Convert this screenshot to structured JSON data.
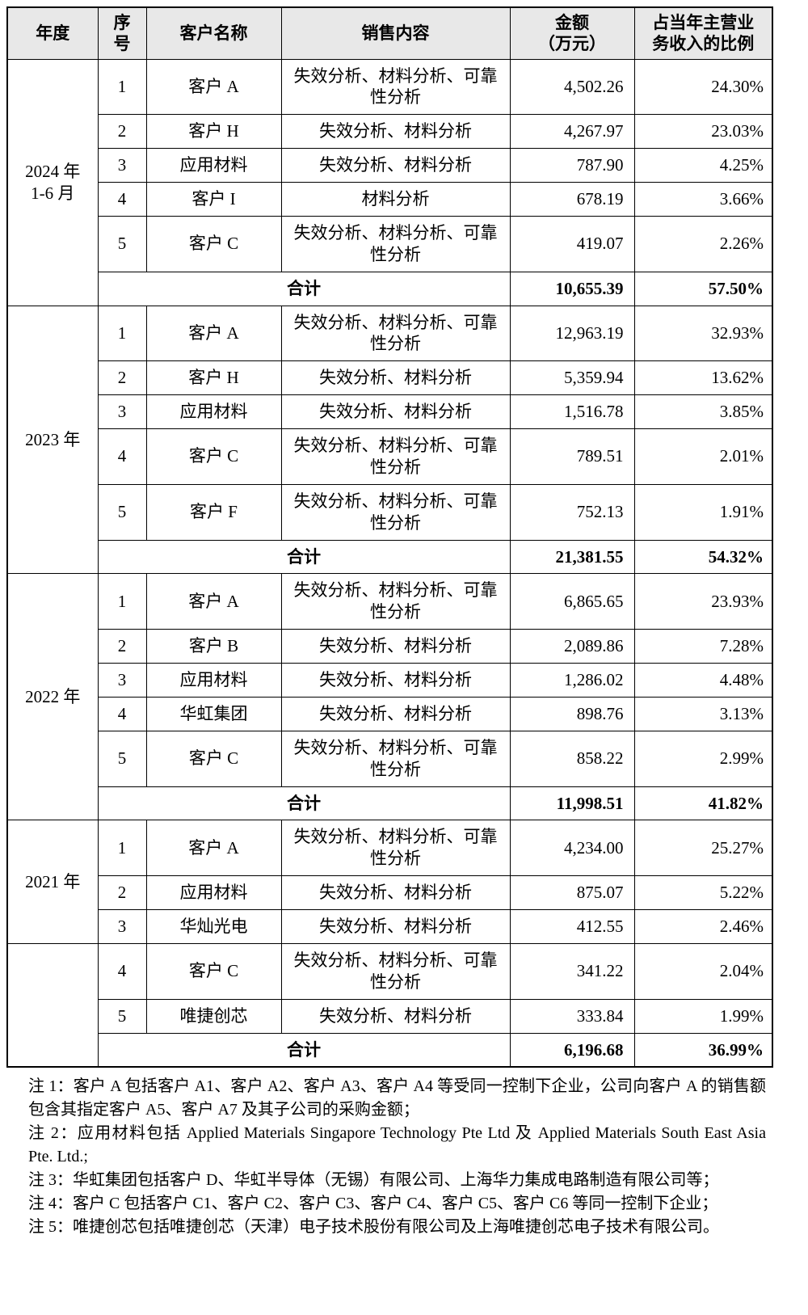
{
  "table": {
    "headers": {
      "year": "年度",
      "no": "序\n号",
      "customer": "客户名称",
      "content": "销售内容",
      "amount": "金额\n（万元）",
      "ratio": "占当年主营业\n务收入的比例"
    },
    "groups": [
      {
        "year": "2024 年\n1-6 月",
        "rows": [
          {
            "no": "1",
            "customer": "客户 A",
            "content": "失效分析、材料分析、可靠性分析",
            "amount": "4,502.26",
            "ratio": "24.30%"
          },
          {
            "no": "2",
            "customer": "客户 H",
            "content": "失效分析、材料分析",
            "amount": "4,267.97",
            "ratio": "23.03%"
          },
          {
            "no": "3",
            "customer": "应用材料",
            "content": "失效分析、材料分析",
            "amount": "787.90",
            "ratio": "4.25%"
          },
          {
            "no": "4",
            "customer": "客户 I",
            "content": "材料分析",
            "amount": "678.19",
            "ratio": "3.66%"
          },
          {
            "no": "5",
            "customer": "客户 C",
            "content": "失效分析、材料分析、可靠性分析",
            "amount": "419.07",
            "ratio": "2.26%"
          }
        ],
        "total": {
          "label": "合计",
          "amount": "10,655.39",
          "ratio": "57.50%"
        }
      },
      {
        "year": "2023 年",
        "rows": [
          {
            "no": "1",
            "customer": "客户 A",
            "content": "失效分析、材料分析、可靠性分析",
            "amount": "12,963.19",
            "ratio": "32.93%"
          },
          {
            "no": "2",
            "customer": "客户 H",
            "content": "失效分析、材料分析",
            "amount": "5,359.94",
            "ratio": "13.62%"
          },
          {
            "no": "3",
            "customer": "应用材料",
            "content": "失效分析、材料分析",
            "amount": "1,516.78",
            "ratio": "3.85%"
          },
          {
            "no": "4",
            "customer": "客户 C",
            "content": "失效分析、材料分析、可靠性分析",
            "amount": "789.51",
            "ratio": "2.01%"
          },
          {
            "no": "5",
            "customer": "客户 F",
            "content": "失效分析、材料分析、可靠性分析",
            "amount": "752.13",
            "ratio": "1.91%"
          }
        ],
        "total": {
          "label": "合计",
          "amount": "21,381.55",
          "ratio": "54.32%"
        }
      },
      {
        "year": "2022 年",
        "rows": [
          {
            "no": "1",
            "customer": "客户 A",
            "content": "失效分析、材料分析、可靠性分析",
            "amount": "6,865.65",
            "ratio": "23.93%"
          },
          {
            "no": "2",
            "customer": "客户 B",
            "content": "失效分析、材料分析",
            "amount": "2,089.86",
            "ratio": "7.28%"
          },
          {
            "no": "3",
            "customer": "应用材料",
            "content": "失效分析、材料分析",
            "amount": "1,286.02",
            "ratio": "4.48%"
          },
          {
            "no": "4",
            "customer": "华虹集团",
            "content": "失效分析、材料分析",
            "amount": "898.76",
            "ratio": "3.13%"
          },
          {
            "no": "5",
            "customer": "客户 C",
            "content": "失效分析、材料分析、可靠性分析",
            "amount": "858.22",
            "ratio": "2.99%"
          }
        ],
        "total": {
          "label": "合计",
          "amount": "11,998.51",
          "ratio": "41.82%"
        }
      },
      {
        "year": "2021 年",
        "rows": [
          {
            "no": "1",
            "customer": "客户 A",
            "content": "失效分析、材料分析、可靠性分析",
            "amount": "4,234.00",
            "ratio": "25.27%"
          },
          {
            "no": "2",
            "customer": "应用材料",
            "content": "失效分析、材料分析",
            "amount": "875.07",
            "ratio": "5.22%"
          },
          {
            "no": "3",
            "customer": "华灿光电",
            "content": "失效分析、材料分析",
            "amount": "412.55",
            "ratio": "2.46%"
          }
        ],
        "total": null
      },
      {
        "year": "",
        "rows": [
          {
            "no": "4",
            "customer": "客户 C",
            "content": "失效分析、材料分析、可靠性分析",
            "amount": "341.22",
            "ratio": "2.04%"
          },
          {
            "no": "5",
            "customer": "唯捷创芯",
            "content": "失效分析、材料分析",
            "amount": "333.84",
            "ratio": "1.99%"
          }
        ],
        "total": {
          "label": "合计",
          "amount": "6,196.68",
          "ratio": "36.99%"
        }
      }
    ]
  },
  "notes": {
    "items": [
      "注 1：客户 A 包括客户 A1、客户 A2、客户 A3、客户 A4 等受同一控制下企业，公司向客户 A 的销售额包含其指定客户 A5、客户 A7 及其子公司的采购金额；",
      "注 2：应用材料包括 Applied Materials Singapore Technology Pte Ltd 及 Applied Materials South East Asia Pte. Ltd.;",
      "注 3：华虹集团包括客户 D、华虹半导体（无锡）有限公司、上海华力集成电路制造有限公司等；",
      "注 4：客户 C 包括客户 C1、客户 C2、客户 C3、客户 C4、客户 C5、客户 C6 等同一控制下企业；",
      "注 5：唯捷创芯包括唯捷创芯（天津）电子技术股份有限公司及上海唯捷创芯电子技术有限公司。"
    ]
  }
}
